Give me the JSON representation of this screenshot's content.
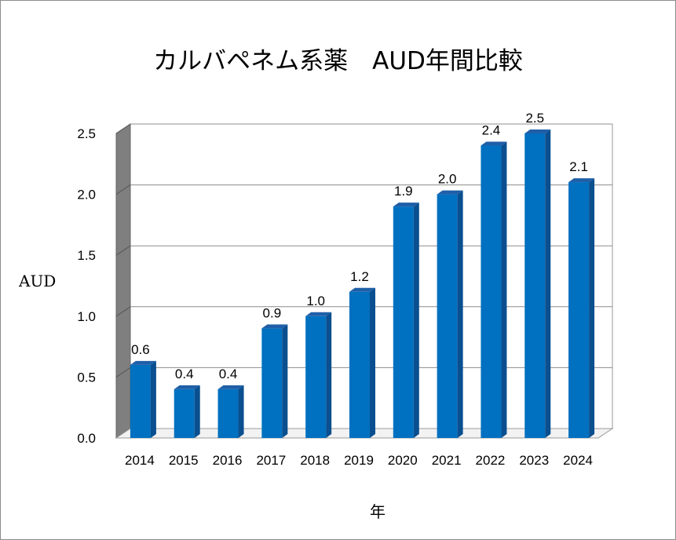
{
  "chart_data": {
    "type": "bar",
    "title": "カルバペネム系薬　AUD年間比較",
    "xlabel": "年",
    "ylabel": "AUD",
    "categories": [
      "2014",
      "2015",
      "2016",
      "2017",
      "2018",
      "2019",
      "2020",
      "2021",
      "2022",
      "2023",
      "2024"
    ],
    "values": [
      0.6,
      0.4,
      0.4,
      0.9,
      1.0,
      1.2,
      1.9,
      2.0,
      2.4,
      2.5,
      2.1
    ],
    "data_labels": [
      "0.6",
      "0.4",
      "0.4",
      "0.9",
      "1.0",
      "1.2",
      "1.9",
      "2.0",
      "2.4",
      "2.5",
      "2.1"
    ],
    "y_ticks": [
      "0.0",
      "0.5",
      "1.0",
      "1.5",
      "2.0",
      "2.5"
    ],
    "ylim": [
      0,
      2.5
    ],
    "grid": true,
    "legend": "none",
    "colors": {
      "bar_front": "#0070c0",
      "bar_top": "#1f5fa8",
      "bar_side": "#0a4f8f",
      "wall": "#7f7f7f",
      "grid": "#8c8c8c"
    }
  }
}
